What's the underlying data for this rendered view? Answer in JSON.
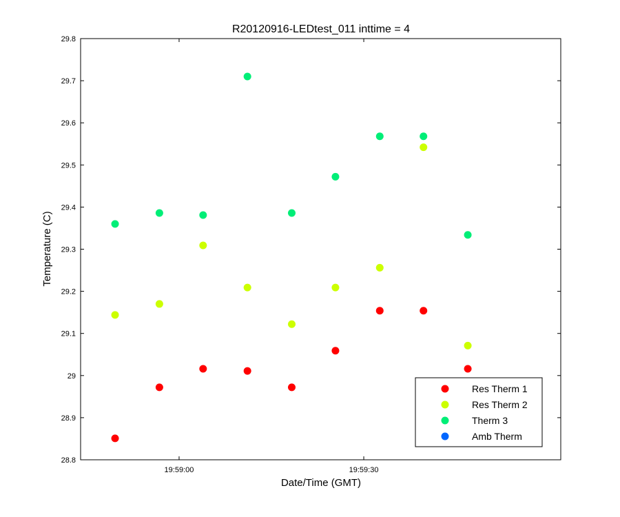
{
  "chart_data": {
    "type": "scatter",
    "title": "R20120916-LEDtest_011 inttime = 4",
    "xlabel": "Date/Time (GMT)",
    "ylabel": "Temperature (C)",
    "x_unit": "seconds after 19:58:00 GMT",
    "xlim": [
      44,
      122
    ],
    "ylim": [
      28.8,
      29.8
    ],
    "x_ticks": [
      {
        "value": 60,
        "label": "19:59:00"
      },
      {
        "value": 90,
        "label": "19:59:30"
      }
    ],
    "y_ticks": [
      28.8,
      28.9,
      29,
      29.1,
      29.2,
      29.3,
      29.4,
      29.5,
      29.6,
      29.7,
      29.8
    ],
    "y_tick_labels": [
      "28.8",
      "28.9",
      "29",
      "29.1",
      "29.2",
      "29.3",
      "29.4",
      "29.5",
      "29.6",
      "29.7",
      "29.8"
    ],
    "grid": false,
    "legend_position": "bottom-right",
    "series": [
      {
        "name": "Res Therm 1",
        "color": "#ff0000",
        "x": [
          49.6,
          56.8,
          63.9,
          71.1,
          78.3,
          85.4,
          92.6,
          99.7,
          106.9
        ],
        "y": [
          28.851,
          28.972,
          29.016,
          29.011,
          28.972,
          29.059,
          29.154,
          29.154,
          29.016
        ]
      },
      {
        "name": "Res Therm 2",
        "color": "#ccff00",
        "x": [
          49.6,
          56.8,
          63.9,
          71.1,
          78.3,
          85.4,
          92.6,
          99.7,
          106.9
        ],
        "y": [
          29.144,
          29.17,
          29.309,
          29.209,
          29.122,
          29.209,
          29.256,
          29.542,
          29.071
        ]
      },
      {
        "name": "Therm 3",
        "color": "#00ee77",
        "x": [
          49.6,
          56.8,
          63.9,
          71.1,
          78.3,
          85.4,
          92.6,
          99.7,
          106.9
        ],
        "y": [
          29.36,
          29.386,
          29.381,
          29.71,
          29.386,
          29.472,
          29.568,
          29.568,
          29.334
        ]
      },
      {
        "name": "Amb Therm",
        "color": "#0066ff",
        "x": [],
        "y": []
      }
    ]
  }
}
